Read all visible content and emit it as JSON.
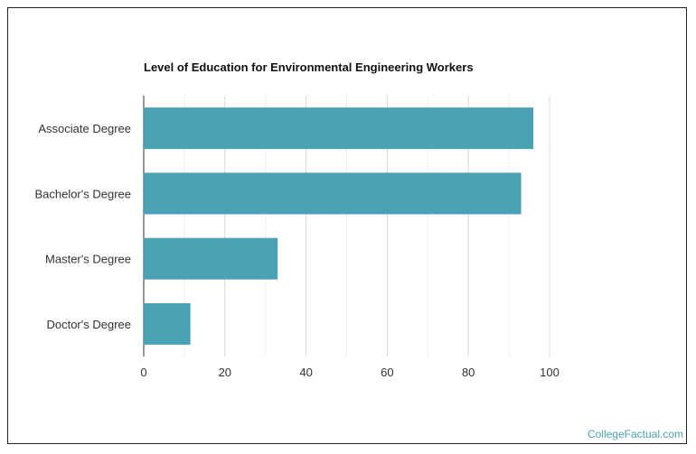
{
  "chart_data": {
    "type": "bar",
    "orientation": "horizontal",
    "title": "Level of Education for Environmental Engineering Workers",
    "categories": [
      "Associate Degree",
      "Bachelor's Degree",
      "Master's Degree",
      "Doctor's Degree"
    ],
    "values": [
      96,
      93,
      33,
      11.5
    ],
    "xlim": [
      0,
      100
    ],
    "xticks": [
      0,
      20,
      40,
      60,
      80,
      100
    ],
    "xlabel": "",
    "ylabel": "",
    "grid": true,
    "legend": "none",
    "bar_color": "#4aa2b4"
  },
  "credit": "CollegeFactual.com"
}
